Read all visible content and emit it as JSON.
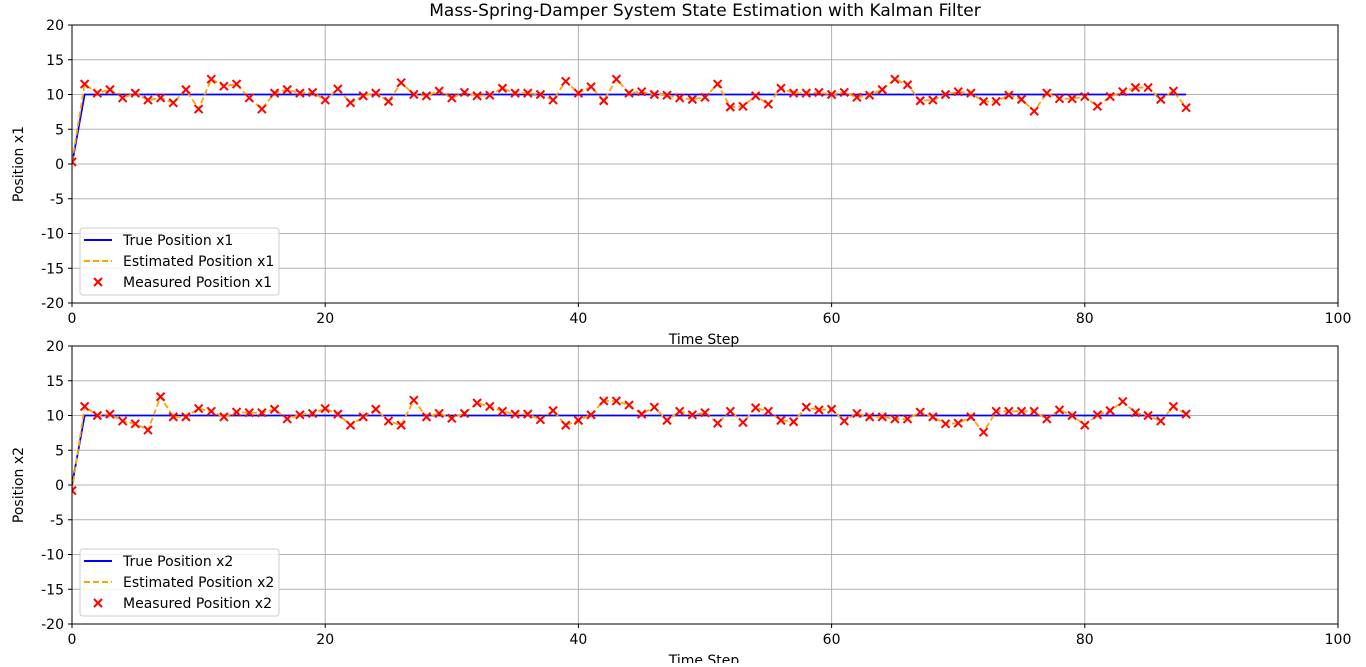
{
  "title": "Mass-Spring-Damper System State Estimation with Kalman Filter",
  "chart_data": [
    {
      "type": "line",
      "title": "Mass-Spring-Damper System State Estimation with Kalman Filter",
      "xlabel": "Time Step",
      "ylabel": "Position x1",
      "xlim": [
        0,
        100
      ],
      "ylim": [
        -20,
        20
      ],
      "xticks": [
        0,
        20,
        40,
        60,
        80,
        100
      ],
      "yticks": [
        -20,
        -15,
        -10,
        -5,
        0,
        5,
        10,
        15,
        20
      ],
      "grid": true,
      "legend_position": "lower-left",
      "series": [
        {
          "name": "True Position x1",
          "kind": "line",
          "color": "#0000ff",
          "x": [
            0,
            1,
            88
          ],
          "y": [
            0,
            10,
            10
          ]
        },
        {
          "name": "Estimated Position x1",
          "kind": "dashed",
          "color": "#ffa500",
          "y_source": "measured"
        },
        {
          "name": "Measured Position x1",
          "kind": "marker-x",
          "color": "#ff0000",
          "x": [
            0,
            1,
            2,
            3,
            4,
            5,
            6,
            7,
            8,
            9,
            10,
            11,
            12,
            13,
            14,
            15,
            16,
            17,
            18,
            19,
            20,
            21,
            22,
            23,
            24,
            25,
            26,
            27,
            28,
            29,
            30,
            31,
            32,
            33,
            34,
            35,
            36,
            37,
            38,
            39,
            40,
            41,
            42,
            43,
            44,
            45,
            46,
            47,
            48,
            49,
            50,
            51,
            52,
            53,
            54,
            55,
            56,
            57,
            58,
            59,
            60,
            61,
            62,
            63,
            64,
            65,
            66,
            67,
            68,
            69,
            70,
            71,
            72,
            73,
            74,
            75,
            76,
            77,
            78,
            79,
            80,
            81,
            82,
            83,
            84,
            85,
            86,
            87,
            88
          ],
          "y": [
            0.3,
            11.5,
            10.2,
            10.7,
            9.5,
            10.2,
            9.2,
            9.5,
            8.8,
            10.7,
            7.9,
            12.2,
            11.2,
            11.5,
            9.5,
            7.9,
            10.2,
            10.7,
            10.2,
            10.3,
            9.2,
            10.8,
            8.8,
            9.8,
            10.2,
            9.0,
            11.7,
            10.0,
            9.8,
            10.5,
            9.5,
            10.3,
            9.8,
            9.9,
            10.9,
            10.2,
            10.2,
            10.0,
            9.2,
            11.9,
            10.2,
            11.1,
            9.1,
            12.2,
            10.2,
            10.4,
            10.0,
            9.9,
            9.5,
            9.3,
            9.6,
            11.5,
            8.2,
            8.3,
            9.8,
            8.6,
            10.9,
            10.2,
            10.2,
            10.3,
            10.0,
            10.3,
            9.6,
            9.9,
            10.7,
            12.2,
            11.4,
            9.1,
            9.2,
            10.0,
            10.4,
            10.2,
            9.0,
            9.0,
            9.9,
            9.3,
            7.6,
            10.2,
            9.4,
            9.4,
            9.7,
            8.3,
            9.7,
            10.4,
            11.0,
            11.0,
            9.3,
            10.5,
            8.1
          ]
        }
      ]
    },
    {
      "type": "line",
      "title": "",
      "xlabel": "Time Step",
      "ylabel": "Position x2",
      "xlim": [
        0,
        100
      ],
      "ylim": [
        -20,
        20
      ],
      "xticks": [
        0,
        20,
        40,
        60,
        80,
        100
      ],
      "yticks": [
        -20,
        -15,
        -10,
        -5,
        0,
        5,
        10,
        15,
        20
      ],
      "grid": true,
      "legend_position": "lower-left",
      "series": [
        {
          "name": "True Position x2",
          "kind": "line",
          "color": "#0000ff",
          "x": [
            0,
            1,
            88
          ],
          "y": [
            0,
            10,
            10
          ]
        },
        {
          "name": "Estimated Position x2",
          "kind": "dashed",
          "color": "#ffa500",
          "y_source": "measured"
        },
        {
          "name": "Measured Position x2",
          "kind": "marker-x",
          "color": "#ff0000",
          "x": [
            0,
            1,
            2,
            3,
            4,
            5,
            6,
            7,
            8,
            9,
            10,
            11,
            12,
            13,
            14,
            15,
            16,
            17,
            18,
            19,
            20,
            21,
            22,
            23,
            24,
            25,
            26,
            27,
            28,
            29,
            30,
            31,
            32,
            33,
            34,
            35,
            36,
            37,
            38,
            39,
            40,
            41,
            42,
            43,
            44,
            45,
            46,
            47,
            48,
            49,
            50,
            51,
            52,
            53,
            54,
            55,
            56,
            57,
            58,
            59,
            60,
            61,
            62,
            63,
            64,
            65,
            66,
            67,
            68,
            69,
            70,
            71,
            72,
            73,
            74,
            75,
            76,
            77,
            78,
            79,
            80,
            81,
            82,
            83,
            84,
            85,
            86,
            87,
            88
          ],
          "y": [
            -0.8,
            11.3,
            10.0,
            10.2,
            9.2,
            8.8,
            7.9,
            12.7,
            9.8,
            9.8,
            11.0,
            10.6,
            9.8,
            10.5,
            10.4,
            10.4,
            10.9,
            9.5,
            10.1,
            10.3,
            11.0,
            10.2,
            8.6,
            9.8,
            10.9,
            9.2,
            8.6,
            12.2,
            9.8,
            10.3,
            9.6,
            10.3,
            11.8,
            11.3,
            10.6,
            10.2,
            10.2,
            9.4,
            10.7,
            8.6,
            9.3,
            10.1,
            12.1,
            12.1,
            11.5,
            10.2,
            11.2,
            9.3,
            10.6,
            10.1,
            10.4,
            8.9,
            10.6,
            9.0,
            11.1,
            10.6,
            9.3,
            9.1,
            11.2,
            10.8,
            10.9,
            9.2,
            10.3,
            9.8,
            9.8,
            9.5,
            9.5,
            10.5,
            9.8,
            8.8,
            8.9,
            9.8,
            7.6,
            10.6,
            10.6,
            10.6,
            10.6,
            9.5,
            10.8,
            10.0,
            8.6,
            10.1,
            10.7,
            12.0,
            10.4,
            10.0,
            9.2,
            11.3,
            10.2
          ]
        }
      ]
    }
  ]
}
